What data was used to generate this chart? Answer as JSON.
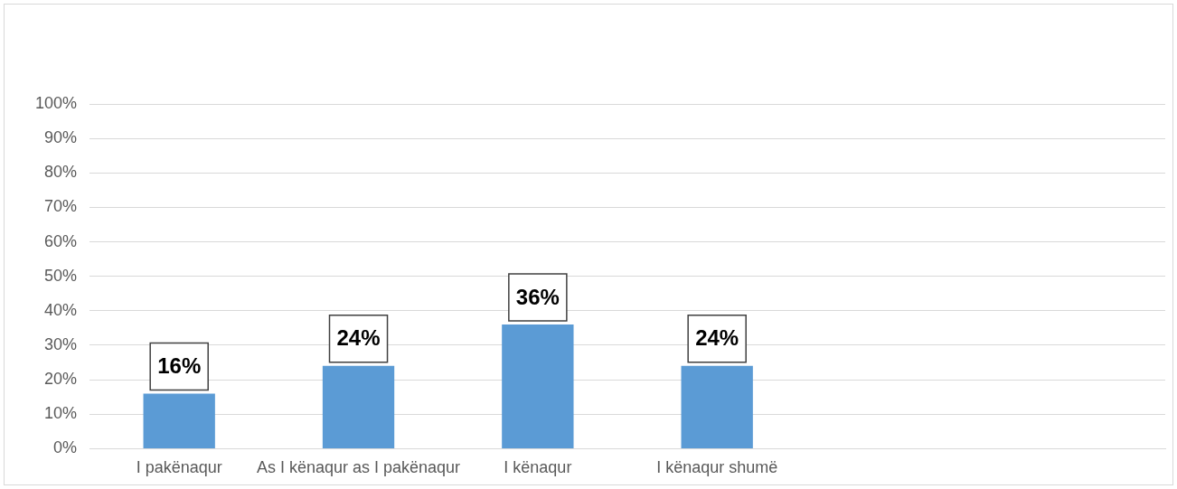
{
  "chart_data": {
    "type": "bar",
    "categories": [
      "I pakënaqur",
      "As I kënaqur as I pakënaqur",
      "I kënaqur",
      "I kënaqur shumë",
      null,
      null
    ],
    "values": [
      16,
      24,
      36,
      24,
      null,
      null
    ],
    "color": "#5b9bd5",
    "ylim": [
      0,
      100
    ],
    "yticks": [
      {
        "value": 0,
        "label": "0%"
      },
      {
        "value": 10,
        "label": "10%"
      },
      {
        "value": 20,
        "label": "20%"
      },
      {
        "value": 30,
        "label": "30%"
      },
      {
        "value": 40,
        "label": "40%"
      },
      {
        "value": 50,
        "label": "50%"
      },
      {
        "value": 60,
        "label": "60%"
      },
      {
        "value": 70,
        "label": "70%"
      },
      {
        "value": 80,
        "label": "80%"
      },
      {
        "value": 90,
        "label": "90%"
      },
      {
        "value": 100,
        "label": "100%"
      }
    ],
    "value_labels": [
      "16%",
      "24%",
      "36%",
      "24%",
      null,
      null
    ],
    "grid": "y",
    "legend": false
  }
}
